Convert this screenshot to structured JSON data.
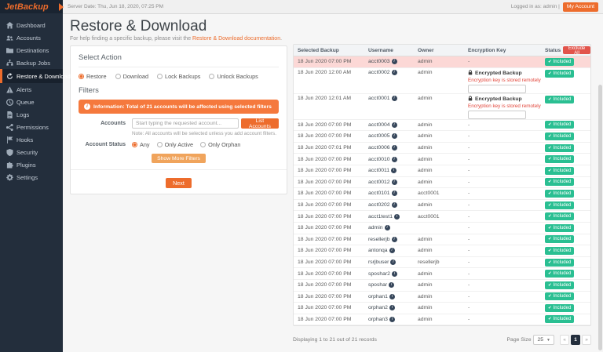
{
  "brand": {
    "logo": "JetBackup"
  },
  "topbar": {
    "server_date": "Server Date: Thu, Jun 18, 2020, 07:25 PM",
    "logged_in_text": "Logged in as: admin |",
    "my_account_label": "My Account"
  },
  "sidebar": {
    "items": [
      {
        "label": "Dashboard",
        "icon": "dashboard",
        "active": false
      },
      {
        "label": "Accounts",
        "icon": "accounts",
        "active": false
      },
      {
        "label": "Destinations",
        "icon": "destinations",
        "active": false
      },
      {
        "label": "Backup Jobs",
        "icon": "backup-jobs",
        "active": false
      },
      {
        "label": "Restore & Download",
        "icon": "restore-download",
        "active": true
      },
      {
        "label": "Alerts",
        "icon": "alerts",
        "active": false
      },
      {
        "label": "Queue",
        "icon": "queue",
        "active": false
      },
      {
        "label": "Logs",
        "icon": "logs",
        "active": false
      },
      {
        "label": "Permissions",
        "icon": "permissions",
        "active": false
      },
      {
        "label": "Hooks",
        "icon": "hooks",
        "active": false
      },
      {
        "label": "Security",
        "icon": "security",
        "active": false
      },
      {
        "label": "Plugins",
        "icon": "plugins",
        "active": false
      },
      {
        "label": "Settings",
        "icon": "settings",
        "active": false
      }
    ]
  },
  "page": {
    "title": "Restore & Download",
    "subtitle_prefix": "For help finding a specific backup, please visit the ",
    "subtitle_link": "Restore & Download documentation",
    "subtitle_suffix": "."
  },
  "action_panel": {
    "select_action_title": "Select Action",
    "actions": [
      {
        "label": "Restore",
        "selected": true
      },
      {
        "label": "Download",
        "selected": false
      },
      {
        "label": "Lock Backups",
        "selected": false
      },
      {
        "label": "Unlock Backups",
        "selected": false
      }
    ],
    "filters_title": "Filters",
    "info_label": "Information:",
    "info_text": "Total of 21 accounts will be affected using selected filters",
    "accounts_label": "Accounts",
    "accounts_placeholder": "Start typing the requested account...",
    "list_accounts_button": "List Accounts",
    "accounts_note": "Note: All accounts will be selected unless you add account filters.",
    "account_status_label": "Account Status",
    "status_options": [
      {
        "label": "Any",
        "selected": true
      },
      {
        "label": "Only Active",
        "selected": false
      },
      {
        "label": "Only Orphan",
        "selected": false
      }
    ],
    "show_more_filters_button": "Show More Filters",
    "next_button": "Next"
  },
  "table": {
    "columns": [
      "Selected Backup",
      "Username",
      "Owner",
      "Encryption Key",
      "Status"
    ],
    "exclude_all_button": "Exclude All",
    "included_label": "Included",
    "encrypted_title": "Encrypted Backup",
    "encrypted_note": "Encryption key is stored remotely",
    "rows": [
      {
        "date": "18 Jun 2020 07:00 PM",
        "username": "acct0003",
        "owner": "admin",
        "key": "-",
        "encrypted": false,
        "highlight": true
      },
      {
        "date": "18 Jun 2020 12:00 AM",
        "username": "acct0002",
        "owner": "admin",
        "key": "",
        "encrypted": true,
        "highlight": false
      },
      {
        "date": "18 Jun 2020 12:01 AM",
        "username": "acct0001",
        "owner": "admin",
        "key": "",
        "encrypted": true,
        "highlight": false
      },
      {
        "date": "18 Jun 2020 07:00 PM",
        "username": "acct0004",
        "owner": "admin",
        "key": "-",
        "encrypted": false,
        "highlight": false
      },
      {
        "date": "18 Jun 2020 07:00 PM",
        "username": "acct0005",
        "owner": "admin",
        "key": "-",
        "encrypted": false,
        "highlight": false
      },
      {
        "date": "18 Jun 2020 07:01 PM",
        "username": "acct0006",
        "owner": "admin",
        "key": "-",
        "encrypted": false,
        "highlight": false
      },
      {
        "date": "18 Jun 2020 07:00 PM",
        "username": "acct0010",
        "owner": "admin",
        "key": "-",
        "encrypted": false,
        "highlight": false
      },
      {
        "date": "18 Jun 2020 07:00 PM",
        "username": "acct0011",
        "owner": "admin",
        "key": "-",
        "encrypted": false,
        "highlight": false
      },
      {
        "date": "18 Jun 2020 07:00 PM",
        "username": "acct0012",
        "owner": "admin",
        "key": "-",
        "encrypted": false,
        "highlight": false
      },
      {
        "date": "18 Jun 2020 07:00 PM",
        "username": "acct0101",
        "owner": "acct0001",
        "key": "-",
        "encrypted": false,
        "highlight": false
      },
      {
        "date": "18 Jun 2020 07:00 PM",
        "username": "acct0202",
        "owner": "admin",
        "key": "-",
        "encrypted": false,
        "highlight": false
      },
      {
        "date": "18 Jun 2020 07:00 PM",
        "username": "acct1test1",
        "owner": "acct0001",
        "key": "-",
        "encrypted": false,
        "highlight": false
      },
      {
        "date": "18 Jun 2020 07:00 PM",
        "username": "admin",
        "owner": "",
        "key": "-",
        "encrypted": false,
        "highlight": false
      },
      {
        "date": "18 Jun 2020 07:00 PM",
        "username": "resellerjb",
        "owner": "admin",
        "key": "-",
        "encrypted": false,
        "highlight": false
      },
      {
        "date": "18 Jun 2020 07:00 PM",
        "username": "antonqa",
        "owner": "admin",
        "key": "-",
        "encrypted": false,
        "highlight": false
      },
      {
        "date": "18 Jun 2020 07:00 PM",
        "username": "rsrjbuser",
        "owner": "resellerjb",
        "key": "-",
        "encrypted": false,
        "highlight": false
      },
      {
        "date": "18 Jun 2020 07:00 PM",
        "username": "sposhar2",
        "owner": "admin",
        "key": "-",
        "encrypted": false,
        "highlight": false
      },
      {
        "date": "18 Jun 2020 07:00 PM",
        "username": "sposhar",
        "owner": "admin",
        "key": "-",
        "encrypted": false,
        "highlight": false
      },
      {
        "date": "18 Jun 2020 07:00 PM",
        "username": "orphan1",
        "owner": "admin",
        "key": "-",
        "encrypted": false,
        "highlight": false
      },
      {
        "date": "18 Jun 2020 07:00 PM",
        "username": "orphan2",
        "owner": "admin",
        "key": "-",
        "encrypted": false,
        "highlight": false
      },
      {
        "date": "18 Jun 2020 07:00 PM",
        "username": "orphan3",
        "owner": "admin",
        "key": "-",
        "encrypted": false,
        "highlight": false
      }
    ],
    "footer": {
      "records_text": "Displaying 1 to 21 out of 21 records",
      "page_size_label": "Page Size",
      "page_size_value": "25",
      "pagination_prev": "«",
      "pagination_current": "1",
      "pagination_next": "»"
    }
  },
  "colors": {
    "accent": "#ed6c2c",
    "banner": "#f5793d",
    "green": "#2abf92",
    "red": "#e2544b",
    "sidebar_bg": "#232e3c",
    "highlight_row": "#fcd8d6"
  }
}
